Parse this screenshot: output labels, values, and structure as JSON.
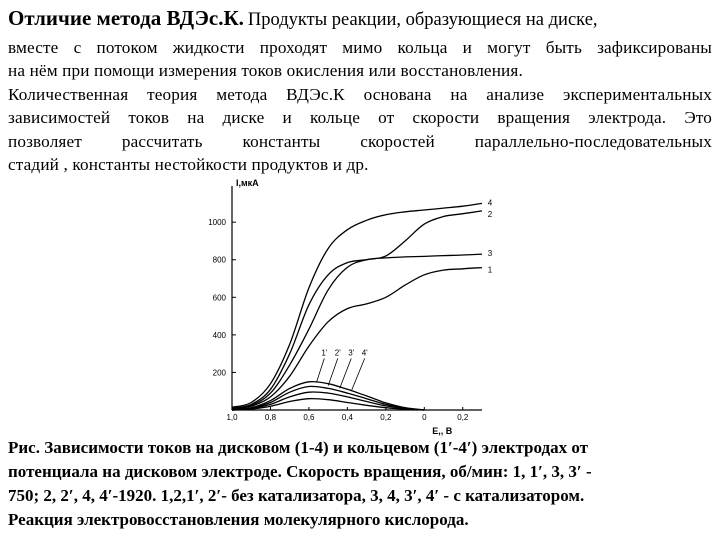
{
  "header": {
    "title_bold": "Отличие метода ВДЭс.К.",
    "title_rest": "Продукты реакции, образующиеся на диске,"
  },
  "body_lines": [
    "вместе с потоком жидкости проходят мимо кольца и могут быть зафиксированы",
    "на нём при помощи измерения токов окисления или восстановления.",
    "Количественная теория метода ВДЭс.К основана на анализе экспериментальных",
    "зависимостей токов на диске и кольце от скорости вращения электрода. Это",
    "позволяет рассчитать константы скоростей параллельно-последовательных",
    "стадий , константы нестойкости продуктов и др."
  ],
  "chart_data": {
    "type": "line",
    "ylabel": "I,мкА",
    "xlabel": "E,, В",
    "x_ticks": [
      "1,0",
      "0,8",
      "0,6",
      "0,4",
      "0,2",
      "0",
      "0,2"
    ],
    "y_ticks": [
      "200",
      "400",
      "600",
      "800",
      "1000"
    ],
    "ylim": [
      0,
      1150
    ],
    "series_labels": [
      "4",
      "2",
      "3",
      "1",
      "1'",
      "2'",
      "3'",
      "4'"
    ],
    "series": [
      {
        "name": "4",
        "x": [
          -1.0,
          -0.9,
          -0.8,
          -0.7,
          -0.6,
          -0.5,
          -0.4,
          -0.3,
          -0.2,
          -0.1,
          0.0,
          0.1,
          0.2,
          0.3
        ],
        "values": [
          15,
          40,
          140,
          350,
          650,
          860,
          960,
          1010,
          1040,
          1055,
          1065,
          1075,
          1085,
          1100
        ]
      },
      {
        "name": "2",
        "x": [
          -1.0,
          -0.9,
          -0.8,
          -0.7,
          -0.6,
          -0.5,
          -0.4,
          -0.3,
          -0.2,
          -0.1,
          0.0,
          0.1,
          0.2,
          0.3
        ],
        "values": [
          10,
          30,
          110,
          300,
          560,
          720,
          785,
          800,
          820,
          900,
          990,
          1030,
          1045,
          1060
        ]
      },
      {
        "name": "3",
        "x": [
          -1.0,
          -0.9,
          -0.8,
          -0.7,
          -0.6,
          -0.5,
          -0.4,
          -0.3,
          -0.2,
          -0.1,
          0.0,
          0.1,
          0.2,
          0.3
        ],
        "values": [
          10,
          25,
          90,
          240,
          430,
          640,
          760,
          800,
          810,
          815,
          818,
          822,
          825,
          830
        ]
      },
      {
        "name": "1",
        "x": [
          -1.0,
          -0.9,
          -0.8,
          -0.7,
          -0.6,
          -0.5,
          -0.4,
          -0.3,
          -0.2,
          -0.1,
          0.0,
          0.1,
          0.2,
          0.3
        ],
        "values": [
          5,
          20,
          70,
          180,
          340,
          470,
          540,
          565,
          600,
          665,
          720,
          745,
          752,
          758
        ]
      },
      {
        "name": "1'",
        "x": [
          -1.0,
          -0.9,
          -0.8,
          -0.7,
          -0.6,
          -0.5,
          -0.4,
          -0.3,
          -0.2,
          -0.1,
          0.0
        ],
        "values": [
          0,
          5,
          20,
          45,
          60,
          55,
          40,
          25,
          12,
          5,
          0
        ]
      },
      {
        "name": "2'",
        "x": [
          -1.0,
          -0.9,
          -0.8,
          -0.7,
          -0.6,
          -0.5,
          -0.4,
          -0.3,
          -0.2,
          -0.1,
          0.0
        ],
        "values": [
          0,
          8,
          30,
          70,
          95,
          90,
          70,
          45,
          22,
          8,
          0
        ]
      },
      {
        "name": "3'",
        "x": [
          -1.0,
          -0.9,
          -0.8,
          -0.7,
          -0.6,
          -0.5,
          -0.4,
          -0.3,
          -0.2,
          -0.1,
          0.0
        ],
        "values": [
          0,
          10,
          40,
          95,
          125,
          115,
          90,
          60,
          30,
          10,
          0
        ]
      },
      {
        "name": "4'",
        "x": [
          -1.0,
          -0.9,
          -0.8,
          -0.7,
          -0.6,
          -0.5,
          -0.4,
          -0.3,
          -0.2,
          -0.1,
          0.0
        ],
        "values": [
          0,
          12,
          50,
          115,
          150,
          140,
          110,
          75,
          38,
          12,
          0
        ]
      }
    ]
  },
  "caption_lines": [
    "Рис. Зависимости токов на дисковом (1-4) и кольцевом (1′-4′) электродах от",
    "потенциала на дисковом электроде. Скорость вращения, об/мин: 1, 1′, 3, 3′ -",
    "750; 2, 2′, 4, 4′-1920. 1,2,1′, 2′- без катализатора, 3, 4, 3′, 4′ - с катализатором.",
    "Реакция электровосстановления молекулярного кислорода."
  ]
}
